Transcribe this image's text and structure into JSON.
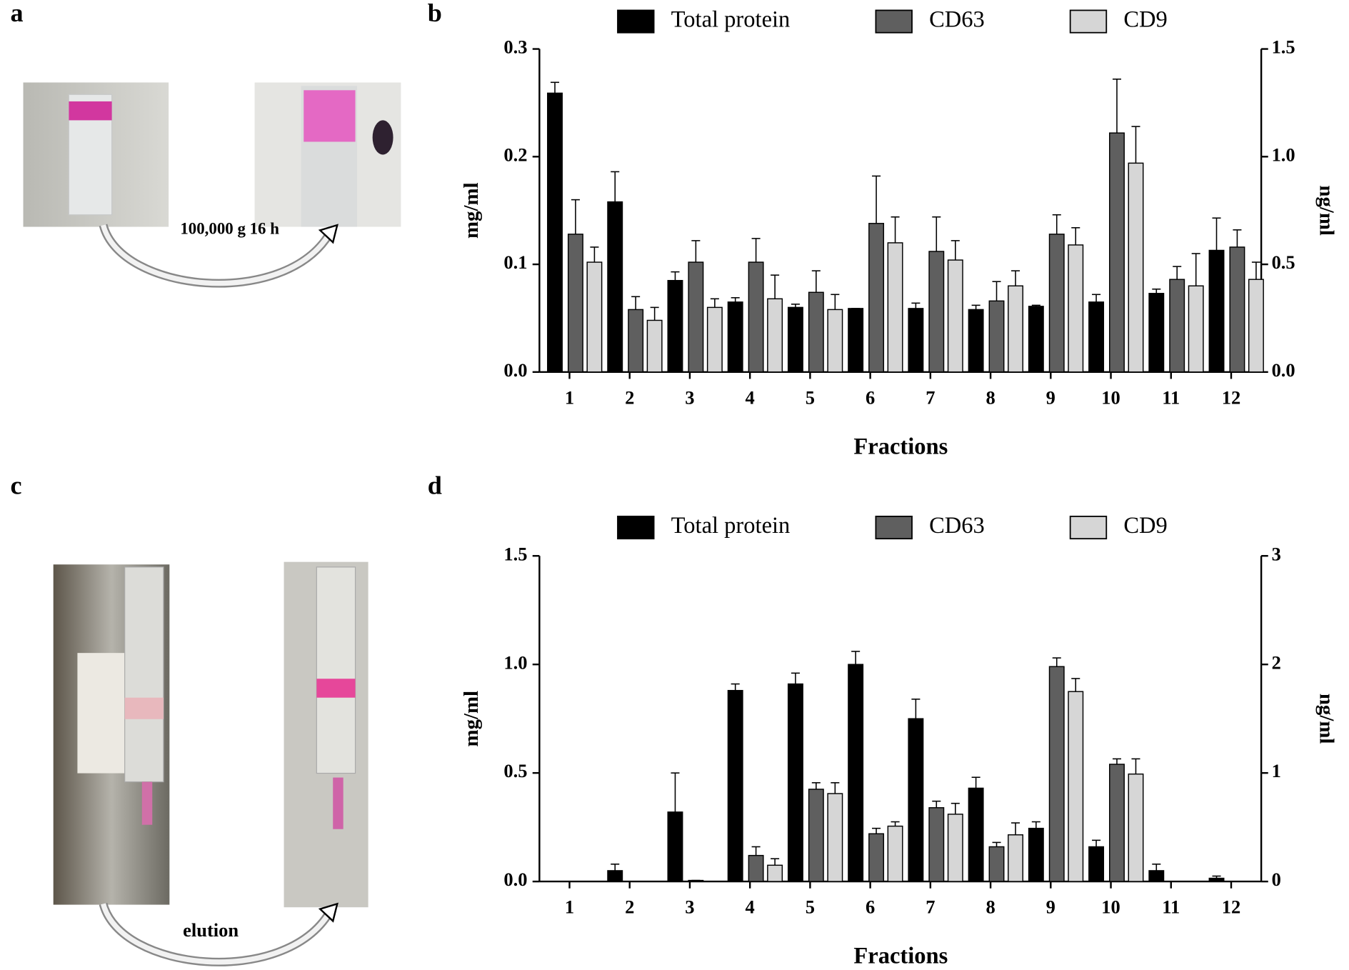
{
  "photos": [
    {
      "label": "a",
      "caption": "100,000 g 16 h"
    },
    {
      "label": "c",
      "caption": "elution"
    }
  ],
  "chart_data": [
    {
      "type": "bar",
      "panel": "b",
      "x_label": "Fractions",
      "y_label": "mg/ml",
      "y2_label": "ng/ml",
      "categories": [
        "1",
        "2",
        "3",
        "4",
        "5",
        "6",
        "7",
        "8",
        "9",
        "10",
        "11",
        "12"
      ],
      "ylim": [
        0,
        0.3
      ],
      "yticks": [
        {
          "value": 0,
          "label": "0.0"
        },
        0.1,
        0.2,
        0.3
      ],
      "y2lim": [
        0,
        1.5
      ],
      "y2ticks": [
        {
          "value": 0,
          "label": "0.0"
        },
        0.5,
        {
          "value": 1,
          "label": "1.0"
        },
        1.5
      ],
      "series": [
        {
          "name": "Total protein",
          "color": "#000000",
          "values": [
            0.259,
            0.158,
            0.085,
            0.065,
            0.06,
            0.059,
            0.059,
            0.058,
            0.061,
            0.065,
            0.073,
            0.113
          ],
          "errors": [
            0.01,
            0.028,
            0.008,
            0.004,
            0.003,
            0,
            0.005,
            0.004,
            0.001,
            0.007,
            0.004,
            0.03
          ]
        },
        {
          "name": "CD63",
          "color": "#5f5f5f",
          "axis": "y2",
          "values": [
            0.64,
            0.29,
            0.51,
            0.51,
            0.37,
            0.69,
            0.56,
            0.33,
            0.64,
            1.11,
            0.43,
            0.58
          ],
          "errors": [
            0.16,
            0.06,
            0.1,
            0.11,
            0.1,
            0.22,
            0.16,
            0.09,
            0.09,
            0.25,
            0.06,
            0.08
          ]
        },
        {
          "name": "CD9",
          "color": "#d6d6d6",
          "axis": "y2",
          "values": [
            0.51,
            0.24,
            0.3,
            0.34,
            0.29,
            0.6,
            0.52,
            0.4,
            0.59,
            0.97,
            0.4,
            0.43
          ],
          "errors": [
            0.07,
            0.06,
            0.04,
            0.11,
            0.07,
            0.12,
            0.09,
            0.07,
            0.08,
            0.17,
            0.15,
            0.08
          ]
        }
      ]
    },
    {
      "type": "bar",
      "panel": "d",
      "x_label": "Fractions",
      "y_label": "mg/ml",
      "y2_label": "ng/ml",
      "categories": [
        "1",
        "2",
        "3",
        "4",
        "5",
        "6",
        "7",
        "8",
        "9",
        "10",
        "11",
        "12"
      ],
      "ylim": [
        0,
        1.5
      ],
      "yticks": [
        {
          "value": 0,
          "label": "0.0"
        },
        0.5,
        {
          "value": 1,
          "label": "1.0"
        },
        1.5
      ],
      "y2lim": [
        0,
        3
      ],
      "y2ticks": [
        0,
        1,
        2,
        3
      ],
      "series": [
        {
          "name": "Total protein",
          "color": "#000000",
          "values": [
            0,
            0.05,
            0.32,
            0.88,
            0.91,
            1.0,
            0.75,
            0.43,
            0.245,
            0.16,
            0.05,
            0.015
          ],
          "errors": [
            0,
            0.03,
            0.18,
            0.03,
            0.05,
            0.06,
            0.09,
            0.05,
            0.03,
            0.03,
            0.03,
            0.01
          ]
        },
        {
          "name": "CD63",
          "color": "#5f5f5f",
          "axis": "y2",
          "values": [
            0,
            0,
            0.01,
            0.24,
            0.85,
            0.44,
            0.68,
            0.32,
            1.98,
            1.08,
            0,
            0
          ],
          "errors": [
            0,
            0,
            0,
            0.08,
            0.06,
            0.05,
            0.06,
            0.04,
            0.08,
            0.05,
            0,
            0
          ]
        },
        {
          "name": "CD9",
          "color": "#d6d6d6",
          "axis": "y2",
          "values": [
            0,
            0,
            0,
            0.15,
            0.81,
            0.51,
            0.62,
            0.43,
            1.75,
            0.99,
            0,
            0
          ],
          "errors": [
            0,
            0,
            0,
            0.06,
            0.1,
            0.04,
            0.1,
            0.11,
            0.12,
            0.14,
            0,
            0
          ]
        }
      ]
    }
  ]
}
